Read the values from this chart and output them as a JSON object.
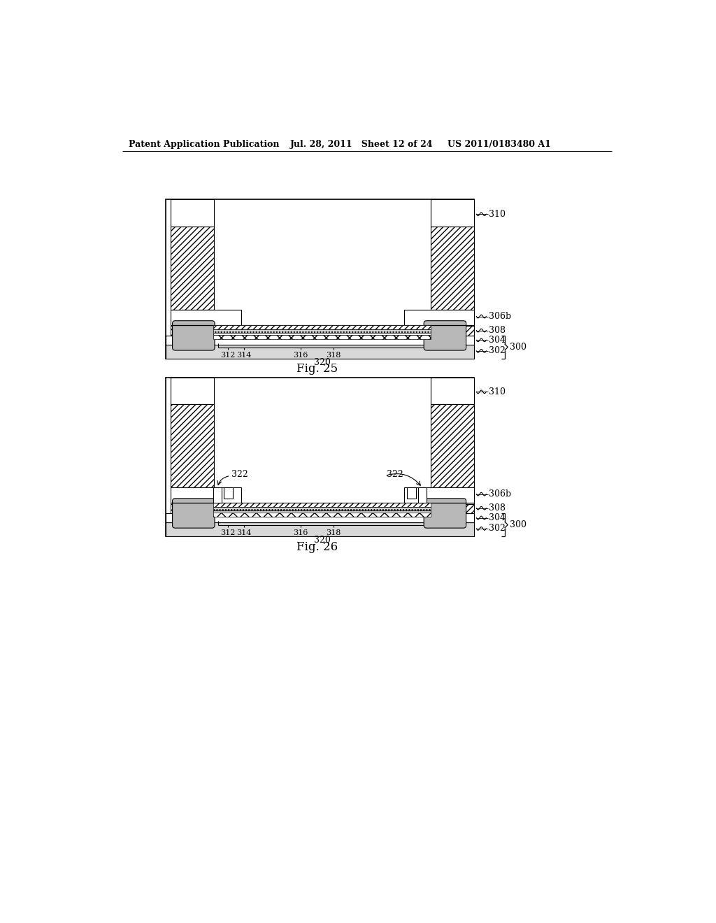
{
  "bg_color": "#ffffff",
  "header_left": "Patent Application Publication",
  "header_mid": "Jul. 28, 2011   Sheet 12 of 24",
  "header_right": "US 2011/0183480 A1",
  "fig25_label": "Fig. 25",
  "fig26_label": "Fig. 26"
}
